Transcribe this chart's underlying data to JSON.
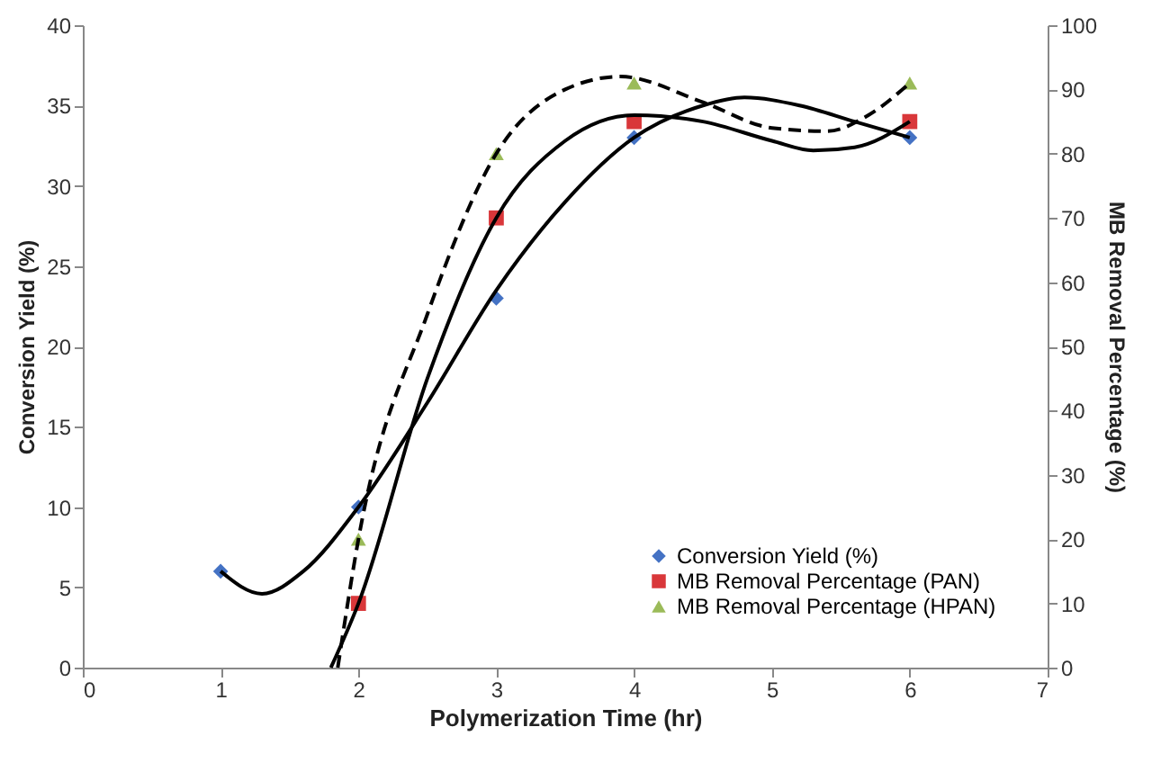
{
  "chart_data": {
    "type": "scatter",
    "xlabel": "Polymerization Time (hr)",
    "ylabel": "Conversion Yield (%)",
    "y2label": "MB Removal Percentage (%)",
    "xlim": [
      0,
      7
    ],
    "xticks": [
      0,
      1,
      2,
      3,
      4,
      5,
      6,
      7
    ],
    "ylim": [
      0,
      40
    ],
    "yticks": [
      0,
      5,
      10,
      15,
      20,
      25,
      30,
      35,
      40
    ],
    "y2lim": [
      0,
      100
    ],
    "y2ticks": [
      0,
      10,
      20,
      30,
      40,
      50,
      60,
      70,
      80,
      90,
      100
    ],
    "grid": false,
    "legend": "bottom right",
    "series": [
      {
        "name": "Conversion Yield (%)",
        "color": "#4472c4",
        "marker": "diamond",
        "x": [
          1,
          2,
          3,
          4,
          6
        ],
        "values": [
          6,
          10,
          23,
          33,
          33
        ]
      },
      {
        "name": "MB Removal Percentage (PAN)",
        "color": "#d9373a",
        "marker": "square",
        "axis": "y2",
        "x": [
          2,
          3,
          4,
          6
        ],
        "values": [
          10,
          70,
          85,
          85
        ]
      },
      {
        "name": "MB Removal Percentage (HPAN)",
        "color": "#9bbb59",
        "marker": "triangle",
        "axis": "y2",
        "x": [
          2,
          3,
          4,
          6
        ],
        "values": [
          20,
          80,
          91,
          91
        ]
      },
      {
        "color": "#000000",
        "type": "line",
        "line_style": "solid",
        "x": [
          1,
          1.3,
          1.6,
          2,
          2.5,
          3,
          3.5,
          4,
          4.5,
          4.8,
          5.2,
          5.6,
          6
        ],
        "values": [
          6,
          4.6,
          6,
          10,
          16.5,
          23.5,
          29,
          33,
          35,
          35.5,
          35,
          34,
          33
        ]
      },
      {
        "color": "#000000",
        "type": "line",
        "line_style": "solid",
        "axis": "y2",
        "x": [
          1.8,
          2,
          2.5,
          3,
          3.5,
          4,
          4.5,
          5,
          5.3,
          5.6,
          6
        ],
        "values": [
          0,
          10,
          45,
          70,
          82,
          86,
          85,
          82,
          80.5,
          81,
          85
        ]
      },
      {
        "color": "#000000",
        "type": "line",
        "line_style": "dashed",
        "axis": "y2",
        "x": [
          1.85,
          2,
          2.5,
          3,
          3.5,
          3.9,
          4.5,
          5,
          5.4,
          5.7,
          6
        ],
        "values": [
          0,
          20,
          55,
          80,
          90,
          92,
          88,
          84,
          83.5,
          86,
          91
        ]
      }
    ]
  }
}
